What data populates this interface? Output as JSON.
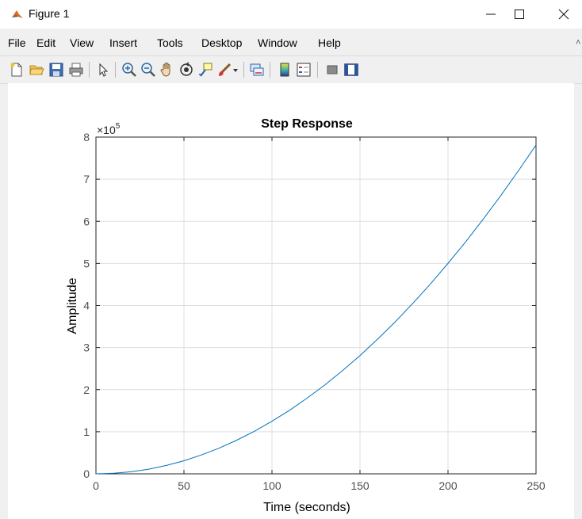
{
  "window": {
    "title": "Figure 1",
    "app_icon": "matlab-icon",
    "controls": [
      "minimize-icon",
      "maximize-icon",
      "close-icon"
    ]
  },
  "menu": {
    "items": [
      "File",
      "Edit",
      "View",
      "Insert",
      "Tools",
      "Desktop",
      "Window",
      "Help"
    ]
  },
  "toolbar": {
    "tools": [
      "new-figure-icon",
      "open-file-icon",
      "save-icon",
      "print-icon",
      "select-arrow-icon",
      "zoom-in-icon",
      "zoom-out-icon",
      "pan-hand-icon",
      "rotate-3d-icon",
      "data-cursor-icon",
      "brush-icon",
      "brush-dropdown-icon",
      "link-plot-icon",
      "colorbar-icon",
      "legend-icon",
      "hide-plot-tools-icon",
      "show-plot-tools-icon"
    ]
  },
  "chart_data": {
    "type": "line",
    "title": "Step Response",
    "xlabel": "Time (seconds)",
    "ylabel": "Amplitude",
    "xlim": [
      0,
      250
    ],
    "ylim": [
      0,
      8
    ],
    "xticks": [
      "0",
      "50",
      "100",
      "150",
      "200",
      "250"
    ],
    "yticks": [
      "0",
      "1",
      "2",
      "3",
      "4",
      "5",
      "6",
      "7",
      "8"
    ],
    "y_exponent": "×10",
    "y_exponent_power": "5",
    "grid": true,
    "series": [
      {
        "color": "#0072bd",
        "x": [
          0,
          10,
          20,
          30,
          40,
          50,
          60,
          70,
          80,
          90,
          100,
          110,
          120,
          130,
          140,
          150,
          160,
          170,
          180,
          190,
          200,
          210,
          220,
          230,
          240,
          250
        ],
        "y": [
          0,
          0.013,
          0.05,
          0.11,
          0.2,
          0.31,
          0.45,
          0.61,
          0.8,
          1.01,
          1.25,
          1.51,
          1.8,
          2.11,
          2.45,
          2.81,
          3.2,
          3.61,
          4.05,
          4.51,
          5.0,
          5.51,
          6.05,
          6.61,
          7.2,
          7.81
        ]
      }
    ]
  }
}
